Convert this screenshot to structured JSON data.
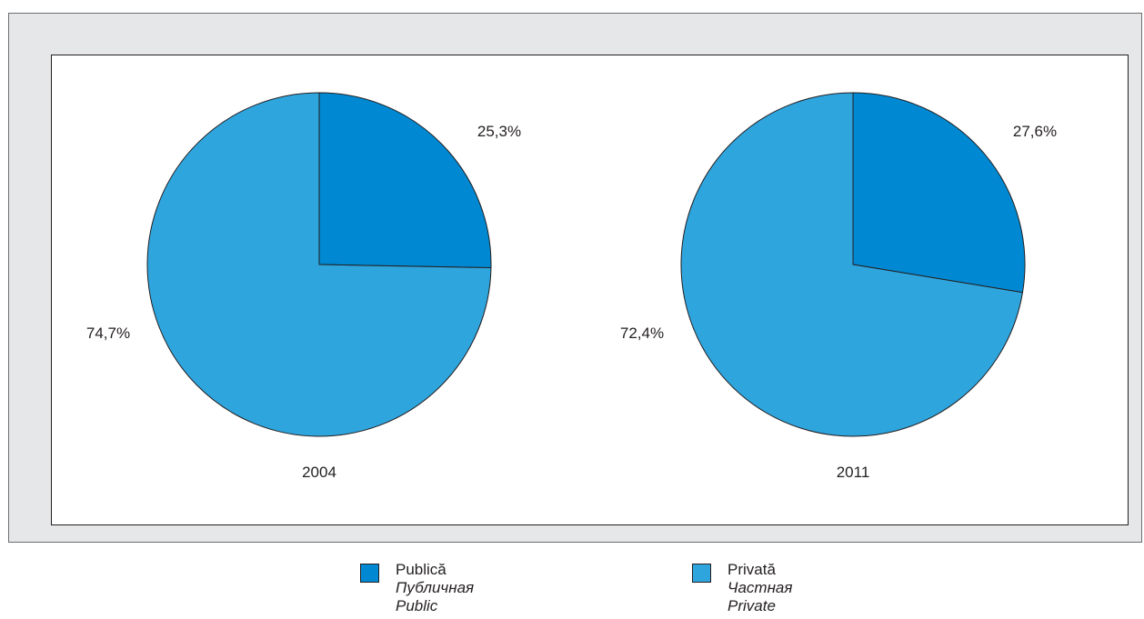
{
  "chart_data": [
    {
      "type": "pie",
      "title": "2004",
      "categories": [
        "Publică",
        "Privată"
      ],
      "values": [
        25.3,
        74.7
      ],
      "labels": [
        "25,3%",
        "74,7%"
      ]
    },
    {
      "type": "pie",
      "title": "2011",
      "categories": [
        "Publică",
        "Privată"
      ],
      "values": [
        27.6,
        72.4
      ],
      "labels": [
        "27,6%",
        "72,4%"
      ]
    }
  ],
  "legend": [
    {
      "ro": "Publică",
      "ru": "Публичная",
      "en": "Public",
      "color": "#0089d2"
    },
    {
      "ro": "Privată",
      "ru": "Частная",
      "en": "Private",
      "color": "#2fa5de"
    }
  ]
}
